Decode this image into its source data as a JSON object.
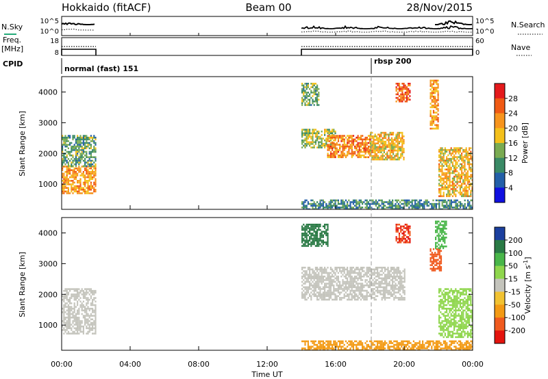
{
  "title": {
    "left": "Hokkaido (fitACF)",
    "center": "Beam 00",
    "right": "28/Nov/2015"
  },
  "nsky_panel": {
    "left_label": "N.Sky",
    "right_label": "N.Search",
    "left_ticks": [
      "10^5",
      "10^0"
    ],
    "right_ticks": [
      "10^5",
      "10^0"
    ]
  },
  "freq_panel": {
    "left_label_1": "Freq.",
    "left_label_2": "[MHz]",
    "right_label": "Nave",
    "left_ticks": [
      "18",
      "8"
    ],
    "right_ticks": [
      "60",
      "0"
    ]
  },
  "cpid_panel": {
    "label": "CPID",
    "modes": [
      {
        "name": "normal (fast) 151",
        "start_hour": 0.0
      },
      {
        "name": "rbsp 200",
        "start_hour": 18.0
      }
    ]
  },
  "x_axis": {
    "label": "Time UT",
    "tick_labels": [
      "00:00",
      "04:00",
      "08:00",
      "12:00",
      "16:00",
      "20:00",
      "00:00"
    ]
  },
  "colorbars": {
    "power": {
      "label": "Power [dB]",
      "tick_labels": [
        "28",
        "24",
        "20",
        "16",
        "12",
        "8",
        "4"
      ],
      "colors": [
        "#e41a1c",
        "#f05a14",
        "#f7941d",
        "#f4c01b",
        "#7aab52",
        "#3a8a66",
        "#235fa8",
        "#1010e0"
      ]
    },
    "velocity": {
      "label": "Velocity [m s",
      "label_superscript": "-1",
      "label_tail": "]",
      "tick_labels": [
        "200",
        "100",
        "50",
        "15",
        "-15",
        "-50",
        "-100",
        "-200"
      ],
      "colors": [
        "#1b3f9e",
        "#2a7a45",
        "#49b649",
        "#8fd64d",
        "#c4c4bc",
        "#f1c232",
        "#f39a14",
        "#f05a1e",
        "#e4140e"
      ]
    }
  },
  "chart_data": [
    {
      "type": "heatmap",
      "name": "power",
      "ylabel": "Slant Range [km]",
      "xlabel": "Time UT",
      "xlim": [
        0,
        24
      ],
      "ylim": [
        180,
        4500
      ],
      "y_tick_labels": [
        "1000",
        "2000",
        "3000",
        "4000"
      ],
      "colorbar": "Power [dB]",
      "clim": [
        0,
        30
      ],
      "regions": [
        {
          "x": [
            0.0,
            2.0
          ],
          "y": [
            700,
            1600
          ],
          "value": 20
        },
        {
          "x": [
            0.0,
            2.0
          ],
          "y": [
            1600,
            2600
          ],
          "value": 11
        },
        {
          "x": [
            14.0,
            16.0
          ],
          "y": [
            2200,
            2800
          ],
          "value": 14
        },
        {
          "x": [
            15.5,
            18.0
          ],
          "y": [
            1900,
            2600
          ],
          "value": 22
        },
        {
          "x": [
            18.0,
            20.0
          ],
          "y": [
            1800,
            2700
          ],
          "value": 18
        },
        {
          "x": [
            14.0,
            24.0
          ],
          "y": [
            200,
            500
          ],
          "value": 9
        },
        {
          "x": [
            14.0,
            15.0
          ],
          "y": [
            3600,
            4300
          ],
          "value": 12
        },
        {
          "x": [
            19.5,
            20.3
          ],
          "y": [
            3700,
            4300
          ],
          "value": 24
        },
        {
          "x": [
            21.5,
            22.0
          ],
          "y": [
            2800,
            4400
          ],
          "value": 20
        },
        {
          "x": [
            22.0,
            24.0
          ],
          "y": [
            600,
            2200
          ],
          "value": 18
        }
      ]
    },
    {
      "type": "heatmap",
      "name": "velocity",
      "ylabel": "Slant Range [km]",
      "xlabel": "Time UT",
      "xlim": [
        0,
        24
      ],
      "ylim": [
        180,
        4500
      ],
      "y_tick_labels": [
        "1000",
        "2000",
        "3000",
        "4000"
      ],
      "colorbar": "Velocity [m s-1]",
      "clim": [
        -200,
        200
      ],
      "regions": [
        {
          "x": [
            0.0,
            2.0
          ],
          "y": [
            700,
            2200
          ],
          "value": 0
        },
        {
          "x": [
            14.0,
            20.0
          ],
          "y": [
            1800,
            2900
          ],
          "value": 0
        },
        {
          "x": [
            14.0,
            24.0
          ],
          "y": [
            200,
            500
          ],
          "value": -60
        },
        {
          "x": [
            14.0,
            15.5
          ],
          "y": [
            3600,
            4300
          ],
          "value": 150
        },
        {
          "x": [
            19.5,
            20.3
          ],
          "y": [
            3700,
            4300
          ],
          "value": -200
        },
        {
          "x": [
            21.5,
            22.2
          ],
          "y": [
            2800,
            3500
          ],
          "value": -120
        },
        {
          "x": [
            21.8,
            22.5
          ],
          "y": [
            3500,
            4400
          ],
          "value": 60
        },
        {
          "x": [
            22.0,
            24.0
          ],
          "y": [
            600,
            2200
          ],
          "value": 30
        }
      ]
    }
  ]
}
